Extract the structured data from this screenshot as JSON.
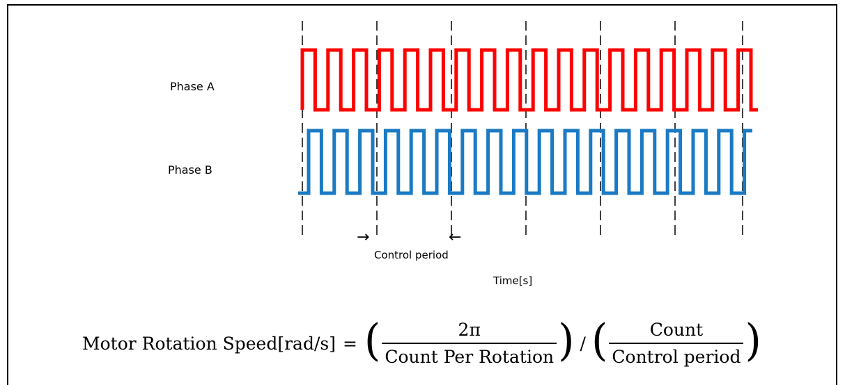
{
  "diagram": {
    "phase_a_label": "Phase A",
    "phase_b_label": "Phase B",
    "control_period_label": "Control period",
    "time_axis_label": "Time[s]",
    "arrow_right_glyph": "→",
    "arrow_left_glyph": "←",
    "colors": {
      "phase_a": "#ff0000",
      "phase_b": "#1a7ac4",
      "dashed_line": "#000000"
    }
  },
  "formula": {
    "lhs": "Motor Rotation Speed[rad/s]",
    "equals": "=",
    "open_paren": "(",
    "close_paren": ")",
    "slash": "/",
    "frac1_num": "2π",
    "frac1_den": "Count Per Rotation",
    "frac2_num": "Count",
    "frac2_den": "Control period"
  }
}
